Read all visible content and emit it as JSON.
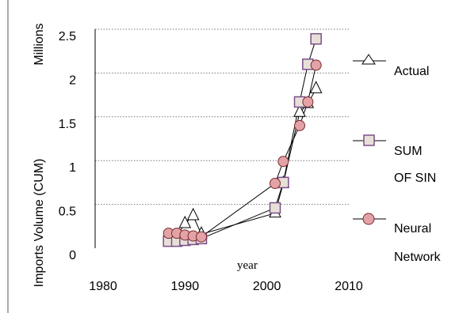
{
  "chart_data": {
    "type": "line",
    "xlabel": "year",
    "ylabel": "Imports Volume (CUM)",
    "yunit": "Millions",
    "xlim": [
      1980,
      2010
    ],
    "ylim": [
      0,
      2.5
    ],
    "xticks": [
      "1980",
      "1990",
      "2000",
      "2010"
    ],
    "yticks": [
      "0",
      "0.5",
      "1",
      "1.5",
      "2",
      "2.5"
    ],
    "grid": "horizontal-dotted",
    "legend_position": "right",
    "series": [
      {
        "name": "Actual",
        "marker": "triangle",
        "color": "#ffffff",
        "edge": "#000000",
        "x": [
          1989,
          1990,
          1991,
          1992,
          2001,
          2002,
          2004,
          2005,
          2006
        ],
        "y": [
          0.14,
          0.28,
          0.37,
          0.16,
          0.4,
          0.74,
          1.55,
          1.65,
          1.82
        ]
      },
      {
        "name": "SUM OF SIN",
        "marker": "square",
        "color": "#e8e0d8",
        "edge": "#7a4f8a",
        "x": [
          1988,
          1989,
          1990,
          1991,
          1992,
          2001,
          2002,
          2004,
          2005,
          2006
        ],
        "y": [
          0.08,
          0.08,
          0.09,
          0.1,
          0.11,
          0.46,
          0.75,
          1.67,
          2.1,
          2.39
        ]
      },
      {
        "name": "Neural Network",
        "marker": "circle",
        "color": "#e3a3a6",
        "edge": "#7a2a2e",
        "x": [
          1988,
          1989,
          1990,
          1991,
          1992,
          2001,
          2002,
          2004,
          2005,
          2006
        ],
        "y": [
          0.17,
          0.17,
          0.15,
          0.14,
          0.13,
          0.74,
          0.99,
          1.4,
          1.67,
          2.09
        ]
      }
    ]
  }
}
